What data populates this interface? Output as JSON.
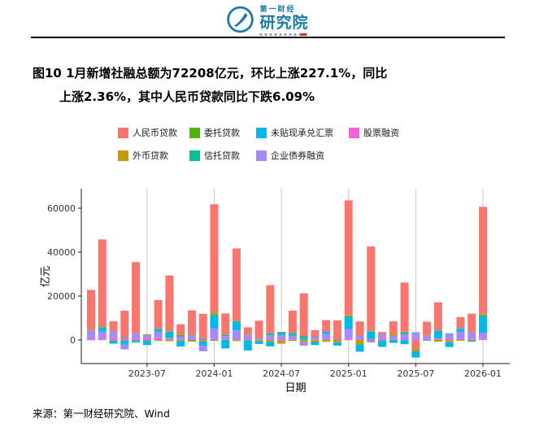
{
  "logo": {
    "brand_top": "第一财经",
    "brand_bottom": "研究院"
  },
  "title": {
    "line1": "图10 1月新增社融总额为72208亿元，环比上涨227.1%，同比",
    "line2": "上涨2.36%，其中人民币贷款同比下跌6.09%"
  },
  "source": "来源：第一财经研究院、Wind",
  "legend": {
    "rows": [
      [
        {
          "label": "人民币贷款",
          "color": "#F8766D"
        },
        {
          "label": "委托贷款",
          "color": "#53B400"
        },
        {
          "label": "未贴现承兑汇票",
          "color": "#00B6EB"
        },
        {
          "label": "股票融资",
          "color": "#FB61D7"
        }
      ],
      [
        {
          "label": "外币贷款",
          "color": "#C49A00"
        },
        {
          "label": "信托贷款",
          "color": "#00C094"
        },
        {
          "label": "企业债券融资",
          "color": "#A58AFF"
        }
      ]
    ]
  },
  "chart_data": {
    "type": "bar",
    "stacked": true,
    "xlabel": "日期",
    "ylabel": "亿元",
    "y_ticks": [
      0,
      20000,
      40000,
      60000
    ],
    "ylim": [
      -9000,
      66000
    ],
    "x_ticks": [
      "2023-07",
      "2024-01",
      "2024-07",
      "2025-01",
      "2025-07",
      "2026-01"
    ],
    "x": [
      "2023-02",
      "2023-03",
      "2023-04",
      "2023-05",
      "2023-06",
      "2023-07",
      "2023-08",
      "2023-09",
      "2023-10",
      "2023-11",
      "2023-12",
      "2024-01",
      "2024-02",
      "2024-03",
      "2024-04",
      "2024-05",
      "2024-06",
      "2024-07",
      "2024-08",
      "2024-09",
      "2024-10",
      "2024-11",
      "2024-12",
      "2025-01",
      "2025-02",
      "2025-03",
      "2025-04",
      "2025-05",
      "2025-06",
      "2025-07",
      "2025-08",
      "2025-09",
      "2025-10",
      "2025-11",
      "2025-12",
      "2026-01"
    ],
    "series": [
      {
        "name": "人民币贷款",
        "color": "#F8766D",
        "values": [
          18184,
          39487,
          4431,
          12219,
          32413,
          364,
          13174,
          25369,
          4837,
          11316,
          11057,
          49200,
          9751,
          33100,
          3349,
          8157,
          21962,
          -767,
          10400,
          19400,
          2988,
          5223,
          8407,
          52200,
          6545,
          38300,
          884,
          5960,
          22400,
          -4000,
          6233,
          12924,
          -201,
          5122,
          8400,
          49021
        ]
      },
      {
        "name": "外币贷款",
        "color": "#C49A00",
        "values": [
          310,
          427,
          -319,
          -338,
          -191,
          -339,
          -201,
          -583,
          -464,
          -357,
          -636,
          989,
          -9,
          -488,
          -310,
          -488,
          -874,
          -889,
          -449,
          -712,
          -710,
          -648,
          -970,
          489,
          -1986,
          326,
          -312,
          687,
          325,
          -1093,
          109,
          -498,
          -816,
          -372,
          -300,
          300
        ]
      },
      {
        "name": "委托贷款",
        "color": "#53B400",
        "values": [
          -77,
          174,
          83,
          35,
          -57,
          8,
          97,
          208,
          429,
          -386,
          -43,
          -359,
          -172,
          -1,
          90,
          -9,
          -1,
          346,
          26,
          394,
          -217,
          -182,
          -205,
          -81,
          -50,
          -210,
          -51,
          -167,
          -40,
          64,
          -97,
          -297,
          -76,
          43,
          -50,
          100
        ]
      },
      {
        "name": "信托贷款",
        "color": "#00C094",
        "values": [
          66,
          -45,
          119,
          303,
          -153,
          230,
          -221,
          402,
          393,
          197,
          348,
          732,
          571,
          680,
          142,
          224,
          748,
          -26,
          484,
          6,
          172,
          92,
          132,
          894,
          -330,
          238,
          23,
          172,
          816,
          163,
          210,
          77,
          211,
          120,
          150,
          900
        ]
      },
      {
        "name": "未贴现承兑汇票",
        "color": "#00B6EB",
        "values": [
          -70,
          1790,
          -1347,
          -1797,
          -692,
          -1962,
          1129,
          2396,
          -2536,
          203,
          -1869,
          5636,
          -3688,
          3552,
          -4486,
          -1330,
          -2047,
          1075,
          651,
          1312,
          -1398,
          909,
          -1332,
          5061,
          -2985,
          3323,
          -2794,
          -1162,
          -1899,
          -2900,
          -258,
          3382,
          -2123,
          1489,
          -500,
          7000
        ]
      },
      {
        "name": "企业债券融资",
        "color": "#A58AFF",
        "values": [
          3644,
          3288,
          2843,
          -2175,
          2360,
          1179,
          2698,
          663,
          1144,
          1410,
          -2625,
          4835,
          1642,
          4121,
          2003,
          285,
          2100,
          2028,
          1692,
          -1911,
          1015,
          2428,
          -153,
          4454,
          1702,
          -905,
          2340,
          1496,
          2413,
          2791,
          1343,
          108,
          2458,
          3248,
          3000,
          2800
        ]
      },
      {
        "name": "股票融资",
        "color": "#FB61D7",
        "values": [
          571,
          614,
          993,
          753,
          700,
          786,
          1036,
          327,
          321,
          359,
          508,
          422,
          114,
          227,
          186,
          111,
          154,
          231,
          132,
          128,
          283,
          406,
          388,
          475,
          180,
          413,
          392,
          151,
          203,
          522,
          457,
          661,
          346,
          397,
          400,
          500
        ]
      }
    ]
  }
}
